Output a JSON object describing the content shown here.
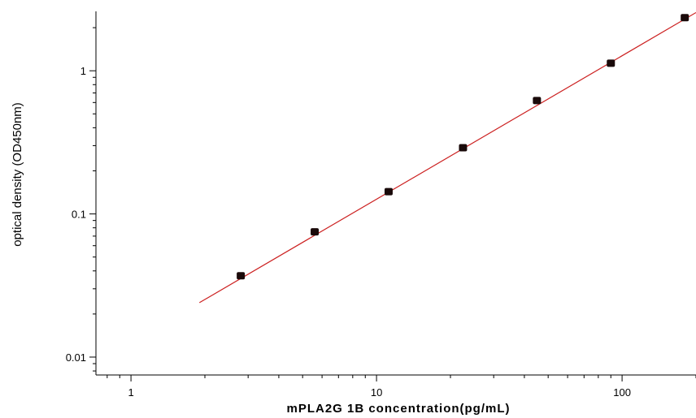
{
  "chart_data": {
    "type": "scatter",
    "title": "",
    "xlabel": "mPLA2G 1B concentration(pg/mL)",
    "ylabel": "optical density (OD450nm)",
    "xscale": "log",
    "yscale": "log",
    "xlim": [
      0.72,
      200
    ],
    "ylim": [
      0.0075,
      2.6
    ],
    "x_ticks": [
      {
        "value": 1,
        "label": "1"
      },
      {
        "value": 10,
        "label": "10"
      },
      {
        "value": 100,
        "label": "100"
      }
    ],
    "y_ticks": [
      {
        "value": 0.01,
        "label": "0.01"
      },
      {
        "value": 0.1,
        "label": "0.1"
      },
      {
        "value": 1,
        "label": "1"
      }
    ],
    "grid": false,
    "legend": "none",
    "series": [
      {
        "x": [
          2.8,
          5.6,
          11.2,
          22.5,
          45,
          90,
          180
        ],
        "y": [
          0.037,
          0.075,
          0.143,
          0.29,
          0.62,
          1.13,
          2.35
        ]
      }
    ],
    "fit_line": {
      "x": [
        1.9,
        200
      ],
      "y": [
        0.024,
        2.55
      ]
    },
    "colors": {
      "marker": "#1a0a0a",
      "fit_line": "#cc2020",
      "axis": "#000000"
    }
  }
}
